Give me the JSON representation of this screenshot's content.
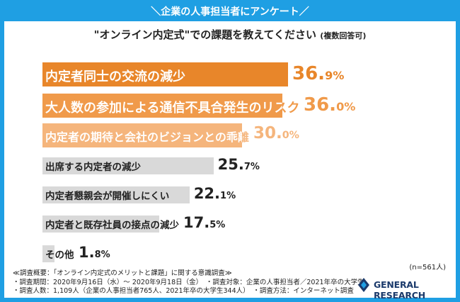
{
  "banner": "＼企業の人事担当者にアンケート／",
  "subtitle": "\"オンライン内定式\"での課題を教えてください",
  "subtitle_note": "(複数回答可)",
  "sample_size": "(n=561人)",
  "footnotes": [
    "≪調査概要：「オンライン内定式のメリットと課題」に関する意識調査≫",
    "・調査期間：2020年9月16日（水）～ 2020年9月18日（金）　・調査対象：企業の人事担当者／2021年卒の大学生",
    "・調査人数：1,109人（企業の人事担当者765人、2021年卒の大学生344人）　・調査方法：インターネット調査"
  ],
  "logo_text": "GENERAL RESEARCH",
  "colors": {
    "frame": "#1f9fe3",
    "orange_dark": "#e8862a",
    "orange_mid": "#f09a4a",
    "orange_light": "#f5b57c",
    "gray": "#d9d9d9"
  },
  "chart_data": {
    "type": "bar",
    "orientation": "horizontal",
    "title": "\"オンライン内定式\"での課題を教えてください",
    "unit": "%",
    "xlim": [
      0,
      40
    ],
    "categories": [
      "内定者同士の交流の減少",
      "大人数の参加による通信不具合発生のリスク",
      "内定者の期待と会社のビジョンとの乖離",
      "出席する内定者の減少",
      "内定者懇親会が開催しにくい",
      "内定者と既存社員の接点の減少",
      "その他"
    ],
    "values": [
      36.9,
      36.0,
      30.0,
      25.7,
      22.1,
      17.5,
      1.8
    ],
    "labels": [
      [
        "36.",
        "9%"
      ],
      [
        "36.",
        "0%"
      ],
      [
        "30.",
        "0%"
      ],
      [
        "25.",
        "7%"
      ],
      [
        "22.",
        "1%"
      ],
      [
        "17.",
        "5%"
      ],
      [
        "1.",
        "8%"
      ]
    ]
  }
}
